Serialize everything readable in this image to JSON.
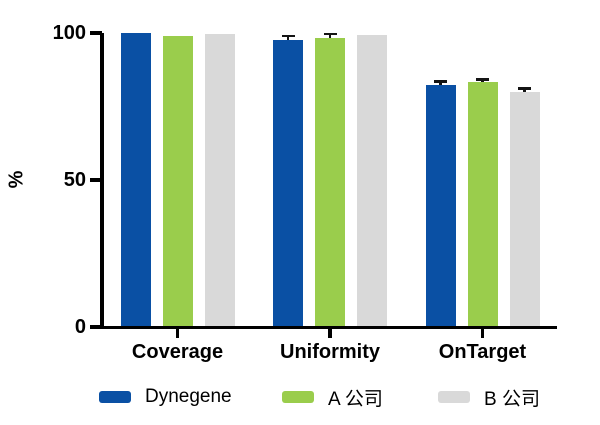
{
  "chart_data": {
    "type": "bar",
    "title": "",
    "categories": [
      "Coverage",
      "Uniformity",
      "OnTarget"
    ],
    "series": [
      {
        "name": "Dynegene",
        "color": "#0A50A4",
        "values": [
          99.9,
          97.6,
          82.3
        ],
        "errors": [
          0,
          0.9,
          0.7
        ]
      },
      {
        "name": "A 公司",
        "color": "#9ACD4C",
        "values": [
          98.9,
          98.3,
          83.2
        ],
        "errors": [
          0,
          1.0,
          0.5
        ]
      },
      {
        "name": "B 公司",
        "color": "#D9D9D9",
        "values": [
          99.6,
          99.2,
          80.0
        ],
        "errors": [
          0,
          0,
          0.7
        ]
      }
    ],
    "ylabel": "%",
    "yticks": [
      0,
      50,
      100
    ],
    "ylim": [
      0,
      100
    ],
    "grid": false,
    "legend_position": "bottom",
    "error_bar_color": "#141414",
    "axis_color": "#000000",
    "background_color": "#ffffff"
  }
}
